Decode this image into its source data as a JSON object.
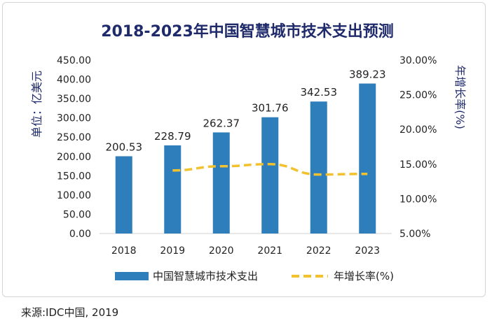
{
  "chart_data": {
    "type": "bar",
    "title": "2018-2023年中国智慧城市技术支出预测",
    "categories": [
      "2018",
      "2019",
      "2020",
      "2021",
      "2022",
      "2023"
    ],
    "series": [
      {
        "name": "中国智慧城市技术支出",
        "kind": "bar",
        "axis": "left",
        "values": [
          200.53,
          228.79,
          262.37,
          301.76,
          342.53,
          389.23
        ],
        "labels": [
          "200.53",
          "228.79",
          "262.37",
          "301.76",
          "342.53",
          "389.23"
        ],
        "color": "#2e7ebb"
      },
      {
        "name": "年增长率(%)",
        "kind": "line",
        "axis": "right",
        "style": "dashed",
        "values": [
          null,
          14.1,
          14.7,
          15.0,
          13.5,
          13.6
        ],
        "color": "#f2c12e"
      }
    ],
    "ylabel": "单位：亿美元",
    "ylabel2": "年增长率(%)",
    "ylim": [
      0,
      450
    ],
    "y_ticks": [
      "0.00",
      "50.00",
      "100.00",
      "150.00",
      "200.00",
      "250.00",
      "300.00",
      "350.00",
      "400.00",
      "450.00"
    ],
    "y2lim": [
      5,
      30
    ],
    "y2_ticks": [
      "5.00%",
      "10.00%",
      "15.00%",
      "20.00%",
      "25.00%",
      "30.00%"
    ],
    "legend_position": "bottom",
    "grid": false
  },
  "source": "来源:IDC中国, 2019",
  "colors": {
    "title": "#1f2a6b",
    "axis_label": "#1f2a6b",
    "text": "#222222"
  }
}
